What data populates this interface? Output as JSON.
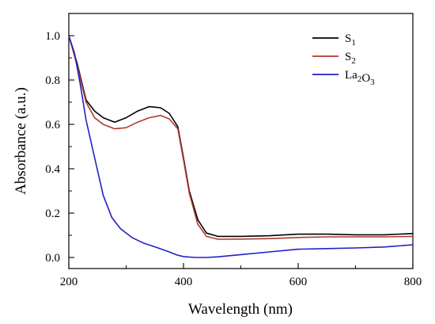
{
  "chart_data": {
    "type": "line",
    "xlabel": "Wavelength (nm)",
    "ylabel": "Absorbance (a.u.)",
    "xlim": [
      200,
      800
    ],
    "ylim": [
      -0.05,
      1.1
    ],
    "xticks": [
      200,
      400,
      600,
      800
    ],
    "xminor": [
      300,
      500,
      700
    ],
    "yticks": [
      0.0,
      0.2,
      0.4,
      0.6,
      0.8,
      1.0
    ],
    "yminor": [
      0.1,
      0.3,
      0.5,
      0.7,
      0.9
    ],
    "grid": false,
    "legend_position": "top-right",
    "series": [
      {
        "name": "S1",
        "color": "#000000",
        "x": [
          200,
          215,
          230,
          245,
          260,
          280,
          300,
          320,
          340,
          360,
          375,
          390,
          400,
          410,
          425,
          440,
          460,
          500,
          550,
          600,
          650,
          700,
          750,
          800
        ],
        "y": [
          1.0,
          0.87,
          0.71,
          0.66,
          0.63,
          0.61,
          0.63,
          0.66,
          0.68,
          0.675,
          0.65,
          0.59,
          0.45,
          0.3,
          0.17,
          0.11,
          0.095,
          0.095,
          0.098,
          0.105,
          0.105,
          0.102,
          0.102,
          0.108
        ]
      },
      {
        "name": "S2",
        "color": "#b03a2e",
        "x": [
          200,
          215,
          230,
          245,
          260,
          280,
          300,
          320,
          340,
          360,
          375,
          390,
          400,
          410,
          425,
          440,
          460,
          500,
          550,
          600,
          650,
          700,
          750,
          800
        ],
        "y": [
          1.0,
          0.86,
          0.7,
          0.63,
          0.6,
          0.58,
          0.585,
          0.61,
          0.63,
          0.64,
          0.625,
          0.58,
          0.44,
          0.29,
          0.15,
          0.095,
          0.082,
          0.083,
          0.085,
          0.09,
          0.093,
          0.093,
          0.093,
          0.095
        ]
      },
      {
        "name": "La2O3",
        "color": "#2020c8",
        "x": [
          200,
          210,
          220,
          230,
          245,
          260,
          275,
          290,
          310,
          330,
          350,
          370,
          390,
          400,
          420,
          440,
          460,
          480,
          500,
          550,
          600,
          650,
          700,
          750,
          800
        ],
        "y": [
          1.0,
          0.92,
          0.78,
          0.62,
          0.45,
          0.28,
          0.18,
          0.13,
          0.09,
          0.065,
          0.048,
          0.03,
          0.01,
          0.004,
          0.0,
          0.0,
          0.003,
          0.008,
          0.013,
          0.025,
          0.037,
          0.04,
          0.043,
          0.047,
          0.057
        ]
      }
    ]
  }
}
